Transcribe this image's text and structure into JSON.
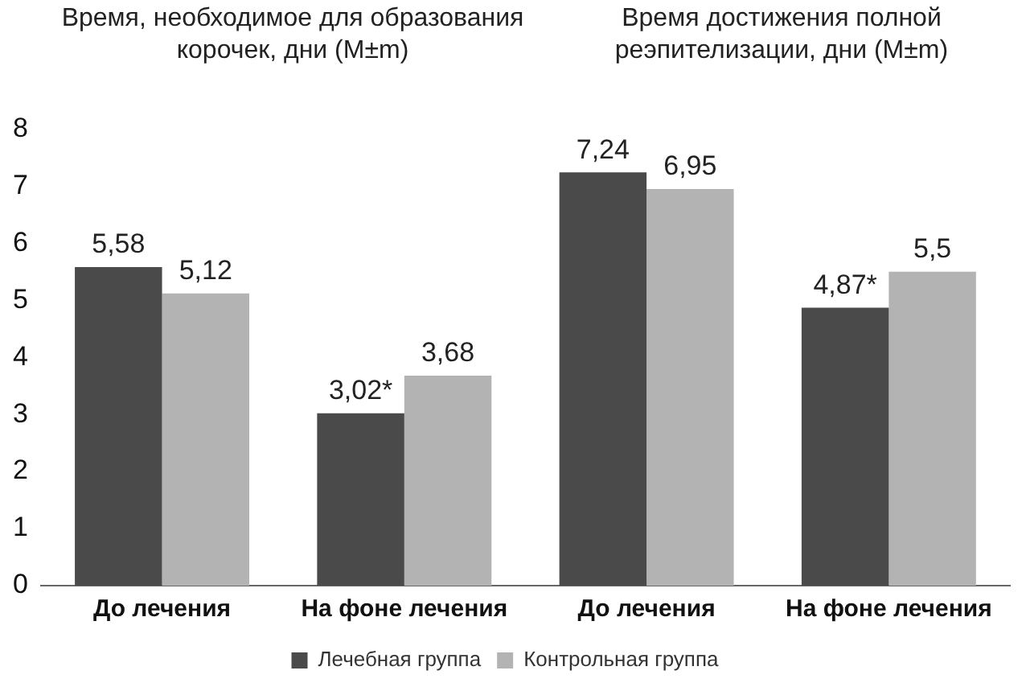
{
  "chart_data": {
    "type": "bar",
    "categories": [
      "До лечения",
      "На фоне лечения",
      "До лечения",
      "На фоне лечения"
    ],
    "series": [
      {
        "name": "Лечебная группа",
        "color": "#4a4a4a",
        "values": [
          5.58,
          3.02,
          7.24,
          4.87
        ],
        "value_labels": [
          "5,58",
          "3,02*",
          "7,24",
          "4,87*"
        ]
      },
      {
        "name": "Контрольная группа",
        "color": "#b3b3b3",
        "values": [
          5.12,
          3.68,
          6.95,
          5.5
        ],
        "value_labels": [
          "5,12",
          "3,68",
          "6,95",
          "5,5"
        ]
      }
    ],
    "annotations": [
      "Время, необходимое для образования корочек, дни (M±m)",
      "Время достижения полной реэпителизации, дни (M±m)"
    ],
    "ylim": [
      0,
      8
    ],
    "yticks": [
      0,
      1,
      2,
      3,
      4,
      5,
      6,
      7,
      8
    ],
    "grid": false,
    "legend": "bottom"
  }
}
